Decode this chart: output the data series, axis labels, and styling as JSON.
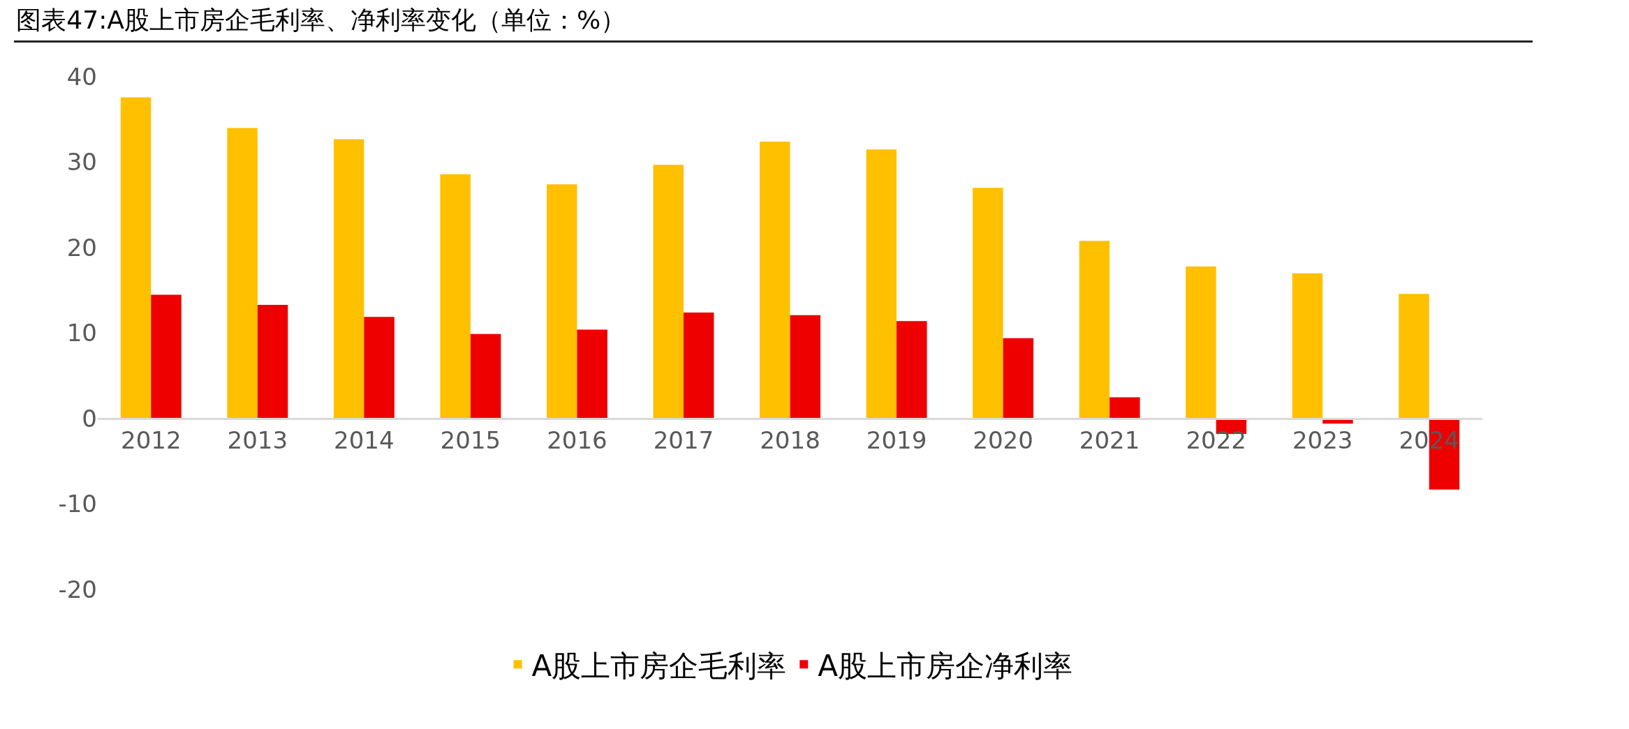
{
  "chart_data": {
    "type": "bar",
    "title": "图表47:A股上市房企毛利率、净利率变化（单位：%）",
    "categories": [
      "2012",
      "2013",
      "2014",
      "2015",
      "2016",
      "2017",
      "2018",
      "2019",
      "2020",
      "2021",
      "2022",
      "2023",
      "2024"
    ],
    "series": [
      {
        "name": "A股上市房企毛利率",
        "color": "#ffc000",
        "values": [
          37.6,
          34.0,
          32.7,
          28.6,
          27.4,
          29.7,
          32.4,
          31.5,
          27.0,
          20.8,
          17.8,
          17.0,
          14.6
        ]
      },
      {
        "name": "A股上市房企净利率",
        "color": "#ee0000",
        "values": [
          14.5,
          13.3,
          11.9,
          9.9,
          10.4,
          12.4,
          12.1,
          11.4,
          9.4,
          2.5,
          -1.8,
          -0.6,
          -8.3
        ]
      }
    ],
    "ylim": [
      -20,
      40
    ],
    "yticks": [
      -20,
      -10,
      0,
      10,
      20,
      30,
      40
    ],
    "grid": false,
    "legend": "bottom"
  }
}
